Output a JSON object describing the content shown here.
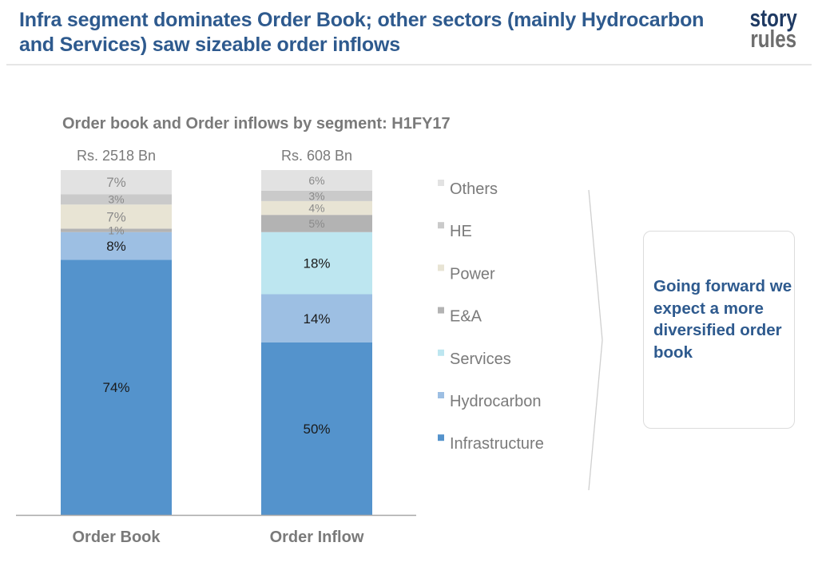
{
  "header": {
    "title": "Infra segment dominates Order Book; other sectors (mainly Hydrocarbon and Services) saw sizeable order inflows",
    "logo_line1": "story",
    "logo_line2": "rules"
  },
  "callout": {
    "text": "Going forward we expect a more diversified order book"
  },
  "chart_data": {
    "type": "bar",
    "stacked": true,
    "percent_stacked": true,
    "title": "Order book and Order inflows by segment: H1FY17",
    "xlabel": "",
    "ylabel": "",
    "ylim": [
      0,
      100
    ],
    "grid": false,
    "legend_position": "right",
    "categories": [
      "Order Book",
      "Order Inflow"
    ],
    "totals": [
      "Rs. 2518 Bn",
      "Rs. 608 Bn"
    ],
    "series": [
      {
        "name": "Infrastructure",
        "color": "#5493cc",
        "label_color": "#1a1a1a",
        "values": [
          74,
          50
        ]
      },
      {
        "name": "Hydrocarbon",
        "color": "#9dbfe3",
        "label_color": "#1a1a1a",
        "values": [
          8,
          14
        ]
      },
      {
        "name": "Services",
        "color": "#bde6f0",
        "label_color": "#1a1a1a",
        "values": [
          0,
          18
        ]
      },
      {
        "name": "E&A",
        "color": "#b3b3b3",
        "label_color": "#8a8a8a",
        "values": [
          1,
          5
        ]
      },
      {
        "name": "Power",
        "color": "#e8e4d4",
        "label_color": "#8a8a8a",
        "values": [
          7,
          4
        ]
      },
      {
        "name": "HE",
        "color": "#cacaca",
        "label_color": "#8a8a8a",
        "values": [
          3,
          3
        ]
      },
      {
        "name": "Others",
        "color": "#e2e2e2",
        "label_color": "#8a8a8a",
        "values": [
          7,
          6
        ]
      }
    ],
    "legend_order": [
      "Others",
      "HE",
      "Power",
      "E&A",
      "Services",
      "Hydrocarbon",
      "Infrastructure"
    ]
  }
}
